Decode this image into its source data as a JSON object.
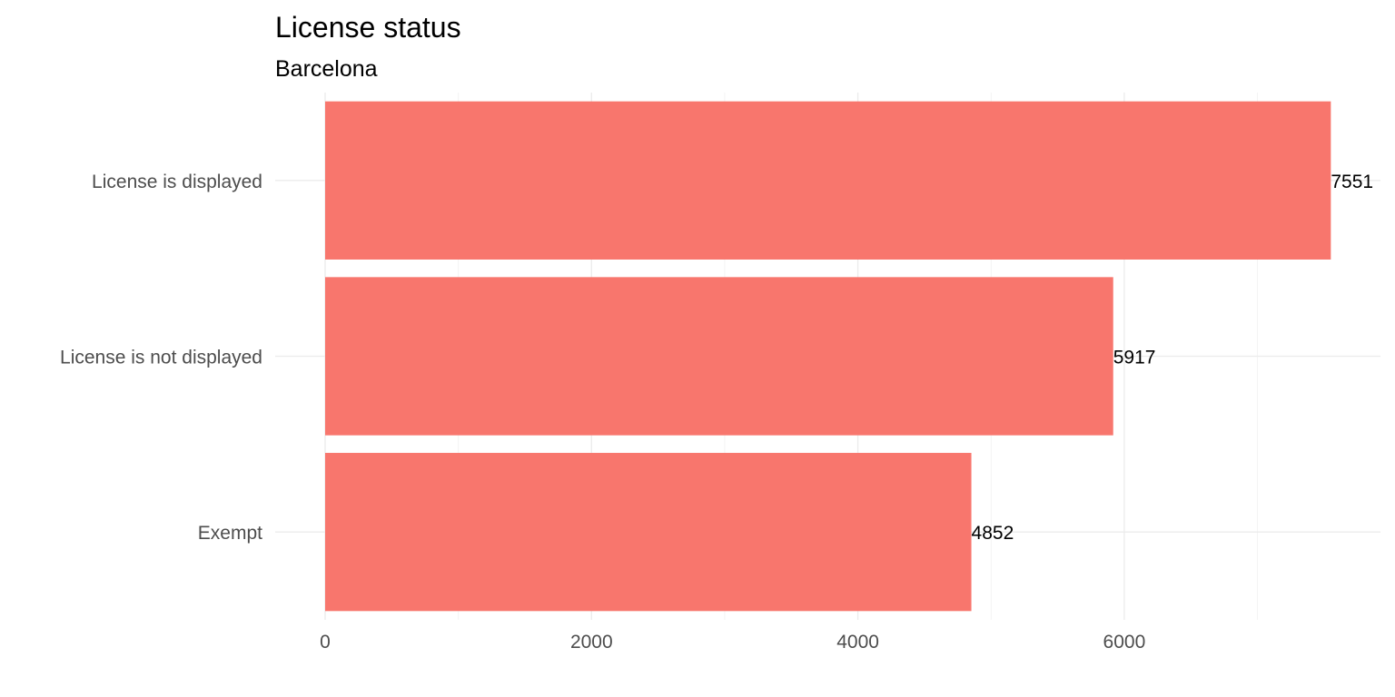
{
  "chart_data": {
    "type": "bar",
    "orientation": "horizontal",
    "title": "License status",
    "subtitle": "Barcelona",
    "xlabel": "",
    "ylabel": "",
    "categories": [
      "License is displayed",
      "License is not displayed",
      "Exempt"
    ],
    "values": [
      7551,
      5917,
      4852
    ],
    "data_labels": [
      "7551",
      "5917",
      "4852"
    ],
    "xlim": [
      0,
      7900
    ],
    "x_ticks": [
      0,
      2000,
      4000,
      6000
    ],
    "x_tick_labels": [
      "0",
      "2000",
      "4000",
      "6000"
    ],
    "x_minor_ticks": [
      1000,
      3000,
      5000,
      7000
    ],
    "grid": true,
    "legend": "none",
    "bar_color": "#F8766D"
  }
}
